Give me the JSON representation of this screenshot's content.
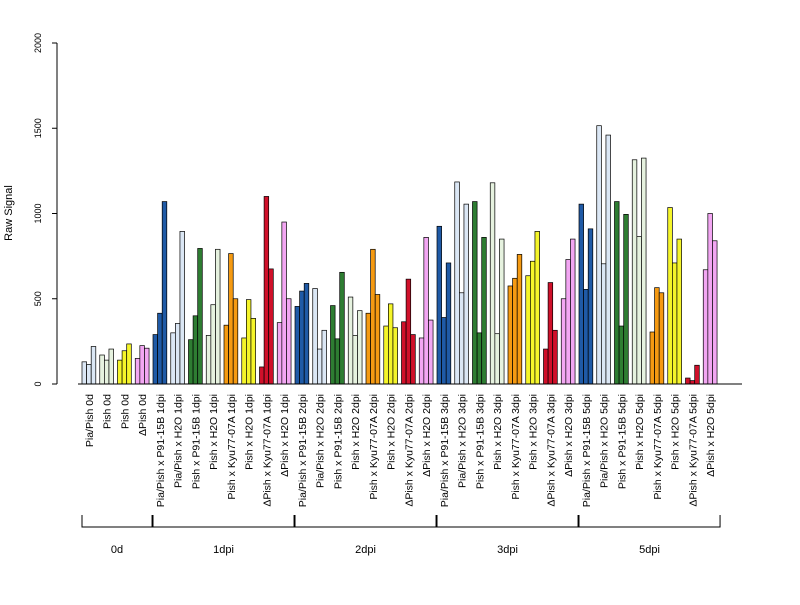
{
  "chart_data": {
    "type": "bar",
    "ylabel": "Raw Signal",
    "ylim": [
      0,
      2000
    ],
    "y_ticks": [
      0,
      500,
      1000,
      1500,
      2000
    ],
    "group_colors": {
      "Pia/Pish x P91-15B": "#1f5aa6",
      "Pia/Pish x H2O": "#dbe7f5",
      "Pish x P91-15B": "#2e7d32",
      "Pish x H2O": "#e6f2df",
      "Pish x Kyu77-07A": "#f59a12",
      "Pish x H2O (yellow)": "#f5f52a",
      "ΔPish x Kyu77-07A": "#d0102a",
      "ΔPish x H2O": "#f2a6f2"
    },
    "bar_groups": [
      {
        "label": "Pia/Pish 0d",
        "color": "#dbe7f5",
        "values": [
          130,
          115,
          220
        ]
      },
      {
        "label": "Pish 0d",
        "color": "#e6f2df",
        "values": [
          170,
          140,
          205
        ]
      },
      {
        "label": "Pish 0d",
        "color": "#f5f52a",
        "values": [
          140,
          195,
          235
        ]
      },
      {
        "label": "ΔPish 0d",
        "color": "#f2a6f2",
        "values": [
          150,
          225,
          210
        ]
      },
      {
        "label": "Pia/Pish x P91-15B 1dpi",
        "color": "#1f5aa6",
        "values": [
          290,
          415,
          1070
        ]
      },
      {
        "label": "Pia/Pish x H2O 1dpi",
        "color": "#dbe7f5",
        "values": [
          300,
          355,
          895
        ]
      },
      {
        "label": "Pish x P91-15B 1dpi",
        "color": "#2e7d32",
        "values": [
          260,
          400,
          795
        ]
      },
      {
        "label": "Pish x H2O 1dpi",
        "color": "#e6f2df",
        "values": [
          285,
          465,
          790
        ]
      },
      {
        "label": "Pish x Kyu77-07A 1dpi",
        "color": "#f59a12",
        "values": [
          345,
          765,
          500
        ]
      },
      {
        "label": "Pish x H2O 1dpi",
        "color": "#f5f52a",
        "values": [
          270,
          495,
          385
        ]
      },
      {
        "label": "ΔPish x Kyu77-07A 1dpi",
        "color": "#d0102a",
        "values": [
          100,
          1100,
          675
        ]
      },
      {
        "label": "ΔPish x H2O 1dpi",
        "color": "#f2a6f2",
        "values": [
          360,
          950,
          500
        ]
      },
      {
        "label": "Pia/Pish x P91-15B 2dpi",
        "color": "#1f5aa6",
        "values": [
          455,
          545,
          590
        ]
      },
      {
        "label": "Pia/Pish x H2O 2dpi",
        "color": "#dbe7f5",
        "values": [
          560,
          205,
          315
        ]
      },
      {
        "label": "Pish x P91-15B 2dpi",
        "color": "#2e7d32",
        "values": [
          460,
          265,
          655
        ]
      },
      {
        "label": "Pish x H2O 2dpi",
        "color": "#e6f2df",
        "values": [
          510,
          285,
          430
        ]
      },
      {
        "label": "Pish x Kyu77-07A 2dpi",
        "color": "#f59a12",
        "values": [
          415,
          790,
          525
        ]
      },
      {
        "label": "Pish x H2O 2dpi",
        "color": "#f5f52a",
        "values": [
          340,
          470,
          330
        ]
      },
      {
        "label": "ΔPish x Kyu77-07A 2dpi",
        "color": "#d0102a",
        "values": [
          365,
          615,
          290
        ]
      },
      {
        "label": "ΔPish x H2O 2dpi",
        "color": "#f2a6f2",
        "values": [
          270,
          860,
          375
        ]
      },
      {
        "label": "Pia/Pish x P91-15B 3dpi",
        "color": "#1f5aa6",
        "values": [
          925,
          390,
          710
        ]
      },
      {
        "label": "Pia/Pish x H2O 3dpi",
        "color": "#dbe7f5",
        "values": [
          1185,
          535,
          1055
        ]
      },
      {
        "label": "Pish x P91-15B 3dpi",
        "color": "#2e7d32",
        "values": [
          1070,
          300,
          860
        ]
      },
      {
        "label": "Pish x H2O 3dpi",
        "color": "#e6f2df",
        "values": [
          1180,
          295,
          850
        ]
      },
      {
        "label": "Pish x Kyu77-07A 3dpi",
        "color": "#f59a12",
        "values": [
          575,
          620,
          760
        ]
      },
      {
        "label": "Pish x H2O 3dpi",
        "color": "#f5f52a",
        "values": [
          635,
          720,
          895
        ]
      },
      {
        "label": "ΔPish x Kyu77-07A 3dpi",
        "color": "#d0102a",
        "values": [
          205,
          595,
          315
        ]
      },
      {
        "label": "ΔPish x H2O 3dpi",
        "color": "#f2a6f2",
        "values": [
          500,
          730,
          850
        ]
      },
      {
        "label": "Pia/Pish x P91-15B 5dpi",
        "color": "#1f5aa6",
        "values": [
          1055,
          555,
          910
        ]
      },
      {
        "label": "Pia/Pish x H2O 5dpi",
        "color": "#dbe7f5",
        "values": [
          1515,
          705,
          1460
        ]
      },
      {
        "label": "Pish x P91-15B 5dpi",
        "color": "#2e7d32",
        "values": [
          1070,
          340,
          995
        ]
      },
      {
        "label": "Pish x H2O 5dpi",
        "color": "#e6f2df",
        "values": [
          1315,
          865,
          1325
        ]
      },
      {
        "label": "Pish x Kyu77-07A 5dpi",
        "color": "#f59a12",
        "values": [
          305,
          565,
          535
        ]
      },
      {
        "label": "Pish x H2O 5dpi",
        "color": "#f5f52a",
        "values": [
          1035,
          710,
          850
        ]
      },
      {
        "label": "ΔPish x Kyu77-07A 5dpi",
        "color": "#d0102a",
        "values": [
          35,
          20,
          110
        ]
      },
      {
        "label": "ΔPish x H2O 5dpi",
        "color": "#f2a6f2",
        "values": [
          670,
          1000,
          840
        ]
      }
    ],
    "time_groups": [
      {
        "label": "0d",
        "bar_groups": [
          0,
          3
        ]
      },
      {
        "label": "1dpi",
        "bar_groups": [
          4,
          11
        ]
      },
      {
        "label": "2dpi",
        "bar_groups": [
          12,
          19
        ]
      },
      {
        "label": "3dpi",
        "bar_groups": [
          20,
          27
        ]
      },
      {
        "label": "5dpi",
        "bar_groups": [
          28,
          35
        ]
      }
    ]
  }
}
